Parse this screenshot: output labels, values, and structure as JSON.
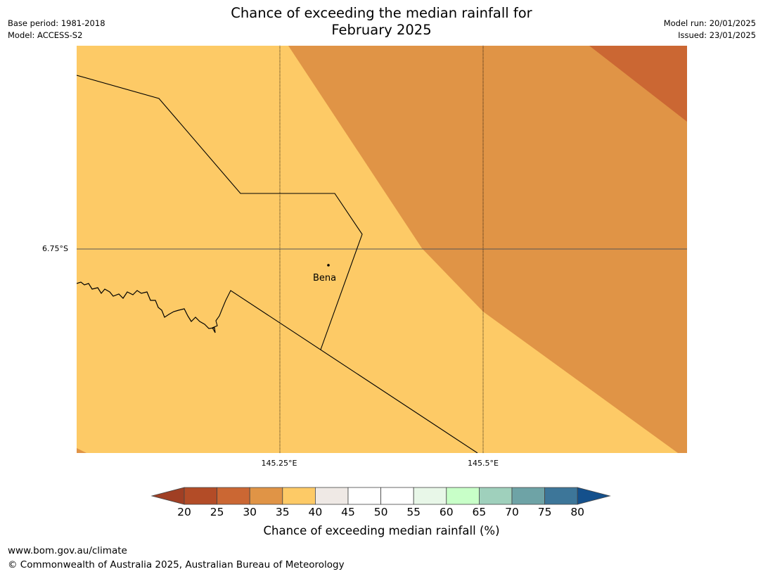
{
  "header": {
    "title_line1": "Chance of exceeding the median rainfall for",
    "title_line2": "February 2025",
    "base_period": "Base period: 1981-2018",
    "model": "Model: ACCESS-S2",
    "model_run": "Model run: 20/01/2025",
    "issued": "Issued: 23/01/2025"
  },
  "map": {
    "place_label": "Bena",
    "lat_label": "6.75°S",
    "lon_labels": [
      "145.25°E",
      "145.5°E"
    ],
    "zone_colors": {
      "35-40": "#fdca66",
      "30-35": "#e09446",
      "25-30": "#cb6733"
    }
  },
  "colorbar": {
    "label": "Chance of exceeding median rainfall (%)",
    "ticks": [
      "20",
      "25",
      "30",
      "35",
      "40",
      "45",
      "50",
      "55",
      "60",
      "65",
      "70",
      "75",
      "80"
    ],
    "colors": [
      "#a03f24",
      "#b34c27",
      "#cb6733",
      "#e09446",
      "#fdca66",
      "#efe9e5",
      "#ffffff",
      "#ffffff",
      "#e8f7e8",
      "#c8ffc8",
      "#9fd0bc",
      "#6ea3a6",
      "#3d7699",
      "#14508c"
    ]
  },
  "footer": {
    "url": "www.bom.gov.au/climate",
    "copyright": "© Commonwealth of Australia 2025, Australian Bureau of Meteorology"
  }
}
